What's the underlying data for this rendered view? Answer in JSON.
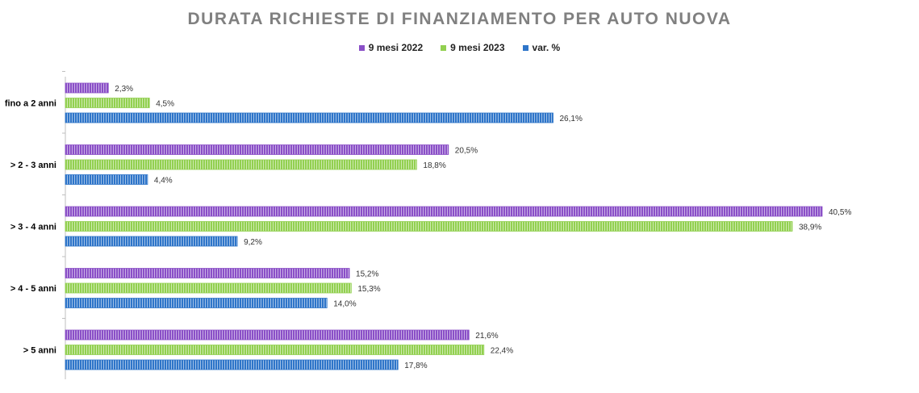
{
  "chart_data": {
    "type": "bar",
    "orientation": "horizontal",
    "title": "DURATA RICHIESTE DI FINANZIAMENTO PER AUTO NUOVA",
    "categories": [
      "fino a 2 anni",
      "> 2 - 3 anni",
      "> 3 - 4 anni",
      "> 4 - 5 anni",
      "> 5 anni"
    ],
    "series": [
      {
        "name": "9 mesi 2022",
        "values": [
          2.3,
          20.5,
          40.5,
          15.2,
          21.6
        ],
        "labels": [
          "2,3%",
          "20,5%",
          "40,5%",
          "15,2%",
          "21,6%"
        ],
        "color": "#8a4fc7"
      },
      {
        "name": "9 mesi 2023",
        "values": [
          4.5,
          18.8,
          38.9,
          15.3,
          22.4
        ],
        "labels": [
          "4,5%",
          "18,8%",
          "38,9%",
          "15,3%",
          "22,4%"
        ],
        "color": "#92d050"
      },
      {
        "name": "var. %",
        "values": [
          26.1,
          4.4,
          9.2,
          14.0,
          17.8
        ],
        "labels": [
          "26,1%",
          "4,4%",
          "9,2%",
          "14,0%",
          "17,8%"
        ],
        "color": "#2e75c9"
      }
    ],
    "xlim": [
      0,
      40.5
    ],
    "legend_position": "top",
    "grid": false
  }
}
